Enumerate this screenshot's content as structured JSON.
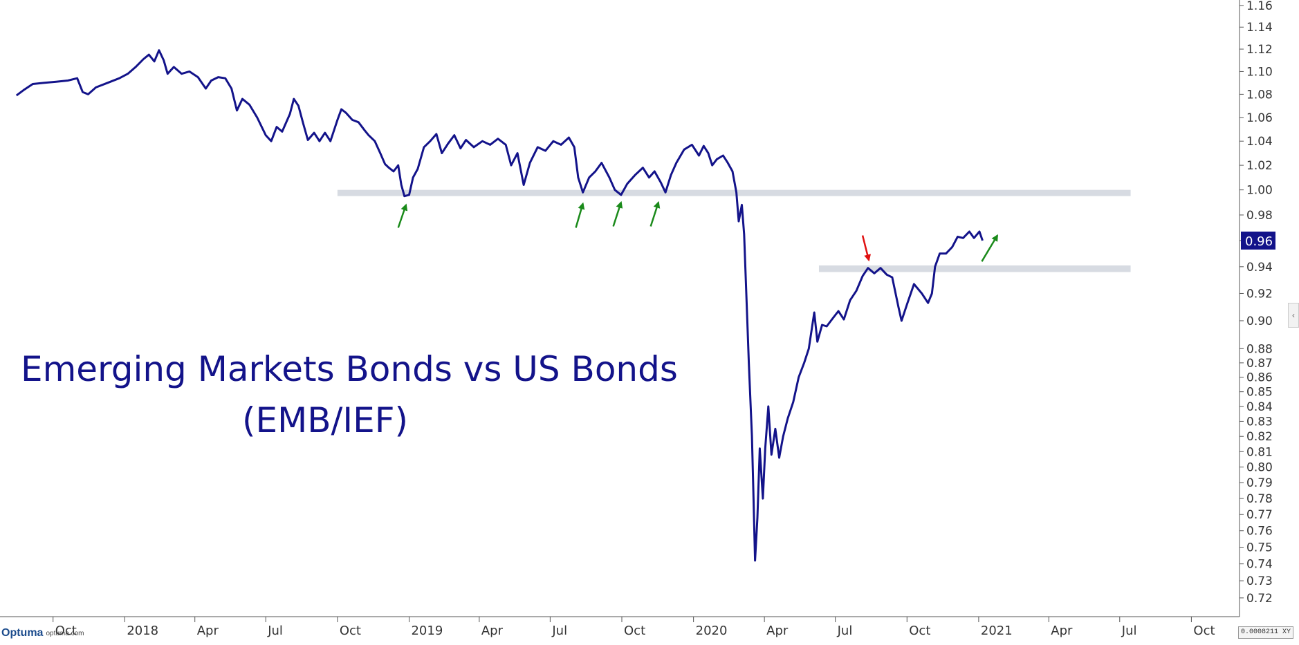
{
  "chart_data": {
    "type": "line",
    "title": "Emerging Markets Bonds vs US Bonds",
    "subtitle": "(EMB/IEF)",
    "y_scale": "log",
    "ylim": [
      0.71,
      1.16
    ],
    "xlim": [
      "2017-08-01",
      "2021-11-30"
    ],
    "x_ticks": [
      {
        "label": "Oct",
        "date": "2017-10-01"
      },
      {
        "label": "2018",
        "date": "2018-01-01"
      },
      {
        "label": "Apr",
        "date": "2018-04-01"
      },
      {
        "label": "Jul",
        "date": "2018-07-01"
      },
      {
        "label": "Oct",
        "date": "2018-10-01"
      },
      {
        "label": "2019",
        "date": "2019-01-01"
      },
      {
        "label": "Apr",
        "date": "2019-04-01"
      },
      {
        "label": "Jul",
        "date": "2019-07-01"
      },
      {
        "label": "Oct",
        "date": "2019-10-01"
      },
      {
        "label": "2020",
        "date": "2020-01-01"
      },
      {
        "label": "Apr",
        "date": "2020-04-01"
      },
      {
        "label": "Jul",
        "date": "2020-07-01"
      },
      {
        "label": "Oct",
        "date": "2020-10-01"
      },
      {
        "label": "2021",
        "date": "2021-01-01"
      },
      {
        "label": "Apr",
        "date": "2021-04-01"
      },
      {
        "label": "Jul",
        "date": "2021-07-01"
      },
      {
        "label": "Oct",
        "date": "2021-10-01"
      }
    ],
    "y_ticks": [
      "1.16",
      "1.14",
      "1.12",
      "1.10",
      "1.08",
      "1.06",
      "1.04",
      "1.02",
      "1.00",
      "0.98",
      "0.96",
      "0.94",
      "0.92",
      "0.90",
      "0.88",
      "0.87",
      "0.86",
      "0.85",
      "0.84",
      "0.83",
      "0.82",
      "0.81",
      "0.80",
      "0.79",
      "0.78",
      "0.77",
      "0.76",
      "0.75",
      "0.74",
      "0.73",
      "0.72"
    ],
    "last_value_label": "0.96",
    "grid": false,
    "series": [
      {
        "color": "#13138a",
        "points": [
          [
            "2017-08-15",
            1.079
          ],
          [
            "2017-08-25",
            1.084
          ],
          [
            "2017-09-05",
            1.089
          ],
          [
            "2017-09-20",
            1.09
          ],
          [
            "2017-10-05",
            1.091
          ],
          [
            "2017-10-20",
            1.092
          ],
          [
            "2017-11-01",
            1.094
          ],
          [
            "2017-11-08",
            1.082
          ],
          [
            "2017-11-15",
            1.08
          ],
          [
            "2017-11-25",
            1.086
          ],
          [
            "2017-12-10",
            1.09
          ],
          [
            "2017-12-25",
            1.094
          ],
          [
            "2018-01-05",
            1.098
          ],
          [
            "2018-01-15",
            1.104
          ],
          [
            "2018-01-25",
            1.111
          ],
          [
            "2018-02-01",
            1.115
          ],
          [
            "2018-02-08",
            1.109
          ],
          [
            "2018-02-14",
            1.119
          ],
          [
            "2018-02-20",
            1.11
          ],
          [
            "2018-02-25",
            1.098
          ],
          [
            "2018-03-05",
            1.104
          ],
          [
            "2018-03-15",
            1.098
          ],
          [
            "2018-03-25",
            1.1
          ],
          [
            "2018-04-05",
            1.095
          ],
          [
            "2018-04-15",
            1.085
          ],
          [
            "2018-04-22",
            1.092
          ],
          [
            "2018-05-01",
            1.095
          ],
          [
            "2018-05-10",
            1.094
          ],
          [
            "2018-05-18",
            1.085
          ],
          [
            "2018-05-25",
            1.066
          ],
          [
            "2018-06-01",
            1.076
          ],
          [
            "2018-06-10",
            1.071
          ],
          [
            "2018-06-20",
            1.06
          ],
          [
            "2018-07-01",
            1.045
          ],
          [
            "2018-07-08",
            1.04
          ],
          [
            "2018-07-15",
            1.052
          ],
          [
            "2018-07-22",
            1.048
          ],
          [
            "2018-08-01",
            1.063
          ],
          [
            "2018-08-06",
            1.076
          ],
          [
            "2018-08-12",
            1.07
          ],
          [
            "2018-08-18",
            1.055
          ],
          [
            "2018-08-24",
            1.041
          ],
          [
            "2018-09-01",
            1.047
          ],
          [
            "2018-09-08",
            1.04
          ],
          [
            "2018-09-15",
            1.047
          ],
          [
            "2018-09-22",
            1.04
          ],
          [
            "2018-10-01",
            1.058
          ],
          [
            "2018-10-06",
            1.067
          ],
          [
            "2018-10-12",
            1.064
          ],
          [
            "2018-10-20",
            1.058
          ],
          [
            "2018-10-28",
            1.056
          ],
          [
            "2018-11-05",
            1.049
          ],
          [
            "2018-11-10",
            1.045
          ],
          [
            "2018-11-18",
            1.04
          ],
          [
            "2018-11-25",
            1.03
          ],
          [
            "2018-12-01",
            1.021
          ],
          [
            "2018-12-06",
            1.018
          ],
          [
            "2018-12-12",
            1.015
          ],
          [
            "2018-12-18",
            1.02
          ],
          [
            "2018-12-22",
            1.004
          ],
          [
            "2018-12-26",
            0.995
          ],
          [
            "2019-01-01",
            0.996
          ],
          [
            "2019-01-06",
            1.01
          ],
          [
            "2019-01-12",
            1.017
          ],
          [
            "2019-01-20",
            1.035
          ],
          [
            "2019-01-28",
            1.04
          ],
          [
            "2019-02-05",
            1.046
          ],
          [
            "2019-02-12",
            1.03
          ],
          [
            "2019-02-20",
            1.038
          ],
          [
            "2019-02-28",
            1.045
          ],
          [
            "2019-03-08",
            1.034
          ],
          [
            "2019-03-15",
            1.041
          ],
          [
            "2019-03-25",
            1.035
          ],
          [
            "2019-04-05",
            1.04
          ],
          [
            "2019-04-15",
            1.037
          ],
          [
            "2019-04-25",
            1.042
          ],
          [
            "2019-05-05",
            1.037
          ],
          [
            "2019-05-12",
            1.02
          ],
          [
            "2019-05-20",
            1.03
          ],
          [
            "2019-05-28",
            1.004
          ],
          [
            "2019-06-05",
            1.022
          ],
          [
            "2019-06-15",
            1.035
          ],
          [
            "2019-06-25",
            1.032
          ],
          [
            "2019-07-05",
            1.04
          ],
          [
            "2019-07-15",
            1.037
          ],
          [
            "2019-07-25",
            1.043
          ],
          [
            "2019-08-01",
            1.035
          ],
          [
            "2019-08-06",
            1.01
          ],
          [
            "2019-08-12",
            0.998
          ],
          [
            "2019-08-20",
            1.01
          ],
          [
            "2019-08-28",
            1.015
          ],
          [
            "2019-09-05",
            1.022
          ],
          [
            "2019-09-15",
            1.01
          ],
          [
            "2019-09-22",
            1.0
          ],
          [
            "2019-09-30",
            0.996
          ],
          [
            "2019-10-08",
            1.005
          ],
          [
            "2019-10-18",
            1.012
          ],
          [
            "2019-10-28",
            1.018
          ],
          [
            "2019-11-05",
            1.01
          ],
          [
            "2019-11-12",
            1.015
          ],
          [
            "2019-11-20",
            1.006
          ],
          [
            "2019-11-26",
            0.998
          ],
          [
            "2019-12-03",
            1.012
          ],
          [
            "2019-12-10",
            1.022
          ],
          [
            "2019-12-20",
            1.033
          ],
          [
            "2019-12-30",
            1.037
          ],
          [
            "2020-01-08",
            1.028
          ],
          [
            "2020-01-14",
            1.036
          ],
          [
            "2020-01-20",
            1.03
          ],
          [
            "2020-01-25",
            1.02
          ],
          [
            "2020-01-31",
            1.025
          ],
          [
            "2020-02-08",
            1.028
          ],
          [
            "2020-02-14",
            1.022
          ],
          [
            "2020-02-20",
            1.015
          ],
          [
            "2020-02-25",
            0.998
          ],
          [
            "2020-02-28",
            0.975
          ],
          [
            "2020-03-03",
            0.988
          ],
          [
            "2020-03-06",
            0.965
          ],
          [
            "2020-03-10",
            0.9
          ],
          [
            "2020-03-12",
            0.87
          ],
          [
            "2020-03-16",
            0.82
          ],
          [
            "2020-03-18",
            0.78
          ],
          [
            "2020-03-20",
            0.742
          ],
          [
            "2020-03-23",
            0.768
          ],
          [
            "2020-03-26",
            0.812
          ],
          [
            "2020-03-30",
            0.78
          ],
          [
            "2020-04-02",
            0.812
          ],
          [
            "2020-04-06",
            0.84
          ],
          [
            "2020-04-10",
            0.808
          ],
          [
            "2020-04-15",
            0.825
          ],
          [
            "2020-04-20",
            0.806
          ],
          [
            "2020-04-25",
            0.82
          ],
          [
            "2020-05-01",
            0.832
          ],
          [
            "2020-05-08",
            0.843
          ],
          [
            "2020-05-15",
            0.86
          ],
          [
            "2020-05-22",
            0.87
          ],
          [
            "2020-05-28",
            0.88
          ],
          [
            "2020-06-04",
            0.906
          ],
          [
            "2020-06-08",
            0.885
          ],
          [
            "2020-06-14",
            0.897
          ],
          [
            "2020-06-20",
            0.896
          ],
          [
            "2020-06-28",
            0.902
          ],
          [
            "2020-07-05",
            0.907
          ],
          [
            "2020-07-12",
            0.901
          ],
          [
            "2020-07-20",
            0.915
          ],
          [
            "2020-07-28",
            0.922
          ],
          [
            "2020-08-05",
            0.933
          ],
          [
            "2020-08-12",
            0.939
          ],
          [
            "2020-08-20",
            0.935
          ],
          [
            "2020-08-28",
            0.939
          ],
          [
            "2020-09-05",
            0.934
          ],
          [
            "2020-09-12",
            0.932
          ],
          [
            "2020-09-20",
            0.91
          ],
          [
            "2020-09-24",
            0.9
          ],
          [
            "2020-10-01",
            0.912
          ],
          [
            "2020-10-10",
            0.927
          ],
          [
            "2020-10-20",
            0.92
          ],
          [
            "2020-10-28",
            0.913
          ],
          [
            "2020-11-02",
            0.92
          ],
          [
            "2020-11-06",
            0.94
          ],
          [
            "2020-11-12",
            0.95
          ],
          [
            "2020-11-20",
            0.95
          ],
          [
            "2020-11-28",
            0.955
          ],
          [
            "2020-12-05",
            0.963
          ],
          [
            "2020-12-12",
            0.962
          ],
          [
            "2020-12-20",
            0.967
          ],
          [
            "2020-12-26",
            0.962
          ],
          [
            "2021-01-02",
            0.967
          ],
          [
            "2021-01-06",
            0.96
          ]
        ]
      }
    ],
    "shaded_zones": [
      {
        "from": "2018-10-01",
        "to": "2021-07-15",
        "y_low": 0.995,
        "y_high": 1.0
      },
      {
        "from": "2020-06-10",
        "to": "2021-07-15",
        "y_low": 0.936,
        "y_high": 0.941
      }
    ],
    "arrows": [
      {
        "color": "#1a8a1a",
        "x1": "2018-12-18",
        "y1": 0.97,
        "x2": "2018-12-28",
        "y2": 0.988
      },
      {
        "color": "#1a8a1a",
        "x1": "2019-08-03",
        "y1": 0.97,
        "x2": "2019-08-12",
        "y2": 0.989
      },
      {
        "color": "#1a8a1a",
        "x1": "2019-09-20",
        "y1": 0.971,
        "x2": "2019-09-30",
        "y2": 0.99
      },
      {
        "color": "#1a8a1a",
        "x1": "2019-11-07",
        "y1": 0.971,
        "x2": "2019-11-17",
        "y2": 0.99
      },
      {
        "color": "#e01010",
        "x1": "2020-08-05",
        "y1": 0.964,
        "x2": "2020-08-13",
        "y2": 0.945
      },
      {
        "color": "#1a8a1a",
        "x1": "2021-01-05",
        "y1": 0.944,
        "x2": "2021-01-25",
        "y2": 0.964
      }
    ]
  },
  "brand": {
    "logo": "Optuma",
    "url": "optuma.com"
  },
  "readout": "0.0008211 XY"
}
